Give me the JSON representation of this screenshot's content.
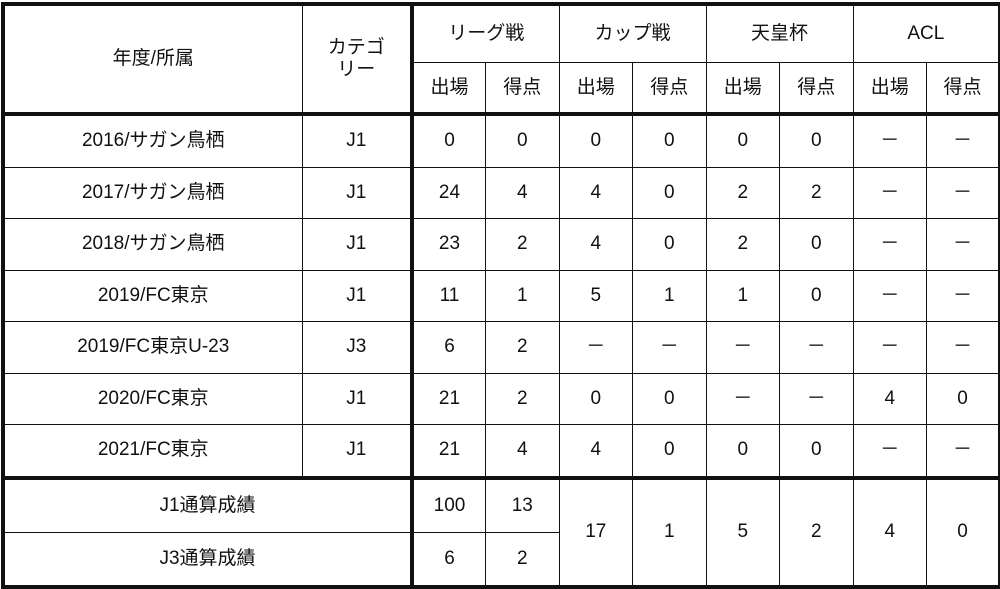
{
  "header": {
    "year_club": "年度/所属",
    "category_line1": "カテゴ",
    "category_line2": "リー",
    "groups": [
      "リーグ戦",
      "カップ戦",
      "天皇杯",
      "ACL"
    ],
    "sub": [
      "出場",
      "得点"
    ]
  },
  "rows": [
    {
      "club": "2016/サガン鳥栖",
      "cat": "J1",
      "vals": [
        "0",
        "0",
        "0",
        "0",
        "0",
        "0",
        "－",
        "－"
      ]
    },
    {
      "club": "2017/サガン鳥栖",
      "cat": "J1",
      "vals": [
        "24",
        "4",
        "4",
        "0",
        "2",
        "2",
        "－",
        "－"
      ]
    },
    {
      "club": "2018/サガン鳥栖",
      "cat": "J1",
      "vals": [
        "23",
        "2",
        "4",
        "0",
        "2",
        "0",
        "－",
        "－"
      ]
    },
    {
      "club": "2019/FC東京",
      "cat": "J1",
      "vals": [
        "11",
        "1",
        "5",
        "1",
        "1",
        "0",
        "－",
        "－"
      ]
    },
    {
      "club": "2019/FC東京U-23",
      "cat": "J3",
      "vals": [
        "6",
        "2",
        "－",
        "－",
        "－",
        "－",
        "－",
        "－"
      ]
    },
    {
      "club": "2020/FC東京",
      "cat": "J1",
      "vals": [
        "21",
        "2",
        "0",
        "0",
        "－",
        "－",
        "4",
        "0"
      ]
    },
    {
      "club": "2021/FC東京",
      "cat": "J1",
      "vals": [
        "21",
        "4",
        "4",
        "0",
        "0",
        "0",
        "－",
        "－"
      ]
    }
  ],
  "totals": {
    "j1_label": "J1通算成績",
    "j1_league": [
      "100",
      "13"
    ],
    "j3_label": "J3通算成績",
    "j3_league": [
      "6",
      "2"
    ],
    "shared": [
      "17",
      "1",
      "5",
      "2",
      "4",
      "0"
    ]
  }
}
